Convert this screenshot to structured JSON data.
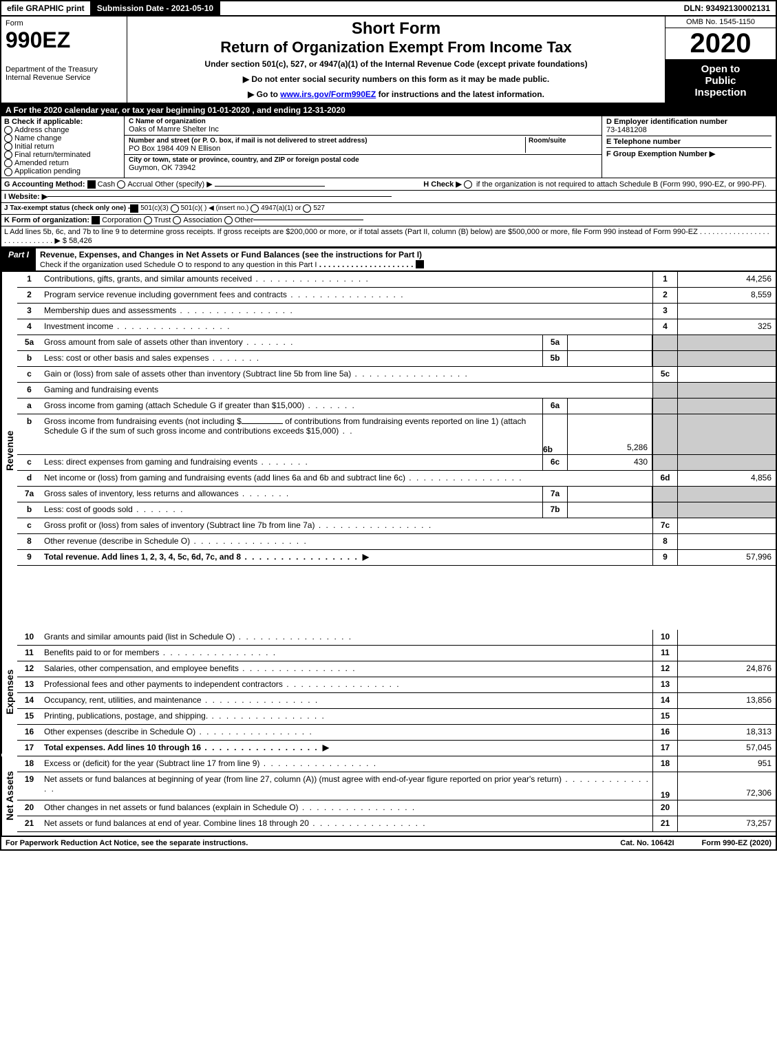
{
  "colors": {
    "black": "#000000",
    "white": "#ffffff",
    "grey_fill": "#cccccc"
  },
  "topbar": {
    "efile": "efile GRAPHIC print",
    "submission": "Submission Date - 2021-05-10",
    "dln": "DLN: 93492130002131"
  },
  "header": {
    "form_word": "Form",
    "form_number": "990EZ",
    "dept": "Department of the Treasury",
    "irs": "Internal Revenue Service",
    "short_form": "Short Form",
    "return_title": "Return of Organization Exempt From Income Tax",
    "subtitle": "Under section 501(c), 527, or 4947(a)(1) of the Internal Revenue Code (except private foundations)",
    "instr1": "▶ Do not enter social security numbers on this form as it may be made public.",
    "instr2_pre": "▶ Go to ",
    "instr2_link": "www.irs.gov/Form990EZ",
    "instr2_post": " for instructions and the latest information.",
    "omb": "OMB No. 1545-1150",
    "year": "2020",
    "open1": "Open to",
    "open2": "Public",
    "open3": "Inspection"
  },
  "section_a": {
    "text_pre": "A  For the 2020 calendar year, or tax year beginning ",
    "begin": "01-01-2020",
    "mid": " , and ending ",
    "end": "12-31-2020"
  },
  "section_b": {
    "title": "B  Check if applicable:",
    "opts": {
      "addr_change": "Address change",
      "name_change": "Name change",
      "initial": "Initial return",
      "final": "Final return/terminated",
      "amended": "Amended return",
      "app_pending": "Application pending"
    }
  },
  "section_c": {
    "name_lbl": "C Name of organization",
    "name": "Oaks of Mamre Shelter Inc",
    "addr_lbl": "Number and street (or P. O. box, if mail is not delivered to street address)",
    "room_lbl": "Room/suite",
    "addr": "PO Box 1984 409 N Ellison",
    "city_lbl": "City or town, state or province, country, and ZIP or foreign postal code",
    "city": "Guymon, OK  73942"
  },
  "section_d": {
    "lbl": "D Employer identification number",
    "val": "73-1481208"
  },
  "section_e": {
    "lbl": "E Telephone number",
    "val": ""
  },
  "section_f": {
    "lbl": "F Group Exemption Number  ▶",
    "val": ""
  },
  "section_g": {
    "lbl": "G Accounting Method:",
    "cash": "Cash",
    "accrual": "Accrual",
    "other": "Other (specify) ▶"
  },
  "section_h": {
    "lbl": "H  Check ▶",
    "txt": " if the organization is not required to attach Schedule B (Form 990, 990-EZ, or 990-PF)."
  },
  "section_i": {
    "lbl": "I Website: ▶",
    "val": ""
  },
  "section_j": {
    "lbl": "J Tax-exempt status (check only one) - ",
    "o1": "501(c)(3)",
    "o2": "501(c)(  ) ◀ (insert no.)",
    "o3": "4947(a)(1) or",
    "o4": "527"
  },
  "section_k": {
    "lbl": "K Form of organization:",
    "o1": "Corporation",
    "o2": "Trust",
    "o3": "Association",
    "o4": "Other"
  },
  "section_l": {
    "txt": "L Add lines 5b, 6c, and 7b to line 9 to determine gross receipts. If gross receipts are $200,000 or more, or if total assets (Part II, column (B) below) are $500,000 or more, file Form 990 instead of Form 990-EZ",
    "arrow": "▶",
    "val": "$ 58,426"
  },
  "part1": {
    "tag": "Part I",
    "title": "Revenue, Expenses, and Changes in Net Assets or Fund Balances (see the instructions for Part I)",
    "note": "Check if the organization used Schedule O to respond to any question in this Part I",
    "side_rev": "Revenue",
    "side_exp": "Expenses",
    "side_na": "Net Assets"
  },
  "rows": {
    "r1": {
      "no": "1",
      "desc": "Contributions, gifts, grants, and similar amounts received",
      "ref": "1",
      "val": "44,256"
    },
    "r2": {
      "no": "2",
      "desc": "Program service revenue including government fees and contracts",
      "ref": "2",
      "val": "8,559"
    },
    "r3": {
      "no": "3",
      "desc": "Membership dues and assessments",
      "ref": "3",
      "val": ""
    },
    "r4": {
      "no": "4",
      "desc": "Investment income",
      "ref": "4",
      "val": "325"
    },
    "r5a": {
      "no": "5a",
      "desc": "Gross amount from sale of assets other than inventory",
      "sub": "5a",
      "subval": ""
    },
    "r5b": {
      "no": "b",
      "desc": "Less: cost or other basis and sales expenses",
      "sub": "5b",
      "subval": ""
    },
    "r5c": {
      "no": "c",
      "desc": "Gain or (loss) from sale of assets other than inventory (Subtract line 5b from line 5a)",
      "ref": "5c",
      "val": ""
    },
    "r6": {
      "no": "6",
      "desc": "Gaming and fundraising events"
    },
    "r6a": {
      "no": "a",
      "desc": "Gross income from gaming (attach Schedule G if greater than $15,000)",
      "sub": "6a",
      "subval": ""
    },
    "r6b": {
      "no": "b",
      "desc1": "Gross income from fundraising events (not including $",
      "desc2": " of contributions from fundraising events reported on line 1) (attach Schedule G if the sum of such gross income and contributions exceeds $15,000)",
      "sub": "6b",
      "subval": "5,286"
    },
    "r6c": {
      "no": "c",
      "desc": "Less: direct expenses from gaming and fundraising events",
      "sub": "6c",
      "subval": "430"
    },
    "r6d": {
      "no": "d",
      "desc": "Net income or (loss) from gaming and fundraising events (add lines 6a and 6b and subtract line 6c)",
      "ref": "6d",
      "val": "4,856"
    },
    "r7a": {
      "no": "7a",
      "desc": "Gross sales of inventory, less returns and allowances",
      "sub": "7a",
      "subval": ""
    },
    "r7b": {
      "no": "b",
      "desc": "Less: cost of goods sold",
      "sub": "7b",
      "subval": ""
    },
    "r7c": {
      "no": "c",
      "desc": "Gross profit or (loss) from sales of inventory (Subtract line 7b from line 7a)",
      "ref": "7c",
      "val": ""
    },
    "r8": {
      "no": "8",
      "desc": "Other revenue (describe in Schedule O)",
      "ref": "8",
      "val": ""
    },
    "r9": {
      "no": "9",
      "desc": "Total revenue. Add lines 1, 2, 3, 4, 5c, 6d, 7c, and 8",
      "ref": "9",
      "val": "57,996",
      "bold": true,
      "arrow": true
    },
    "r10": {
      "no": "10",
      "desc": "Grants and similar amounts paid (list in Schedule O)",
      "ref": "10",
      "val": ""
    },
    "r11": {
      "no": "11",
      "desc": "Benefits paid to or for members",
      "ref": "11",
      "val": ""
    },
    "r12": {
      "no": "12",
      "desc": "Salaries, other compensation, and employee benefits",
      "ref": "12",
      "val": "24,876"
    },
    "r13": {
      "no": "13",
      "desc": "Professional fees and other payments to independent contractors",
      "ref": "13",
      "val": ""
    },
    "r14": {
      "no": "14",
      "desc": "Occupancy, rent, utilities, and maintenance",
      "ref": "14",
      "val": "13,856"
    },
    "r15": {
      "no": "15",
      "desc": "Printing, publications, postage, and shipping.",
      "ref": "15",
      "val": ""
    },
    "r16": {
      "no": "16",
      "desc": "Other expenses (describe in Schedule O)",
      "ref": "16",
      "val": "18,313"
    },
    "r17": {
      "no": "17",
      "desc": "Total expenses. Add lines 10 through 16",
      "ref": "17",
      "val": "57,045",
      "bold": true,
      "arrow": true
    },
    "r18": {
      "no": "18",
      "desc": "Excess or (deficit) for the year (Subtract line 17 from line 9)",
      "ref": "18",
      "val": "951"
    },
    "r19": {
      "no": "19",
      "desc": "Net assets or fund balances at beginning of year (from line 27, column (A)) (must agree with end-of-year figure reported on prior year's return)",
      "ref": "19",
      "val": "72,306"
    },
    "r20": {
      "no": "20",
      "desc": "Other changes in net assets or fund balances (explain in Schedule O)",
      "ref": "20",
      "val": ""
    },
    "r21": {
      "no": "21",
      "desc": "Net assets or fund balances at end of year. Combine lines 18 through 20",
      "ref": "21",
      "val": "73,257"
    }
  },
  "footer": {
    "left": "For Paperwork Reduction Act Notice, see the separate instructions.",
    "mid": "Cat. No. 10642I",
    "right": "Form 990-EZ (2020)"
  }
}
